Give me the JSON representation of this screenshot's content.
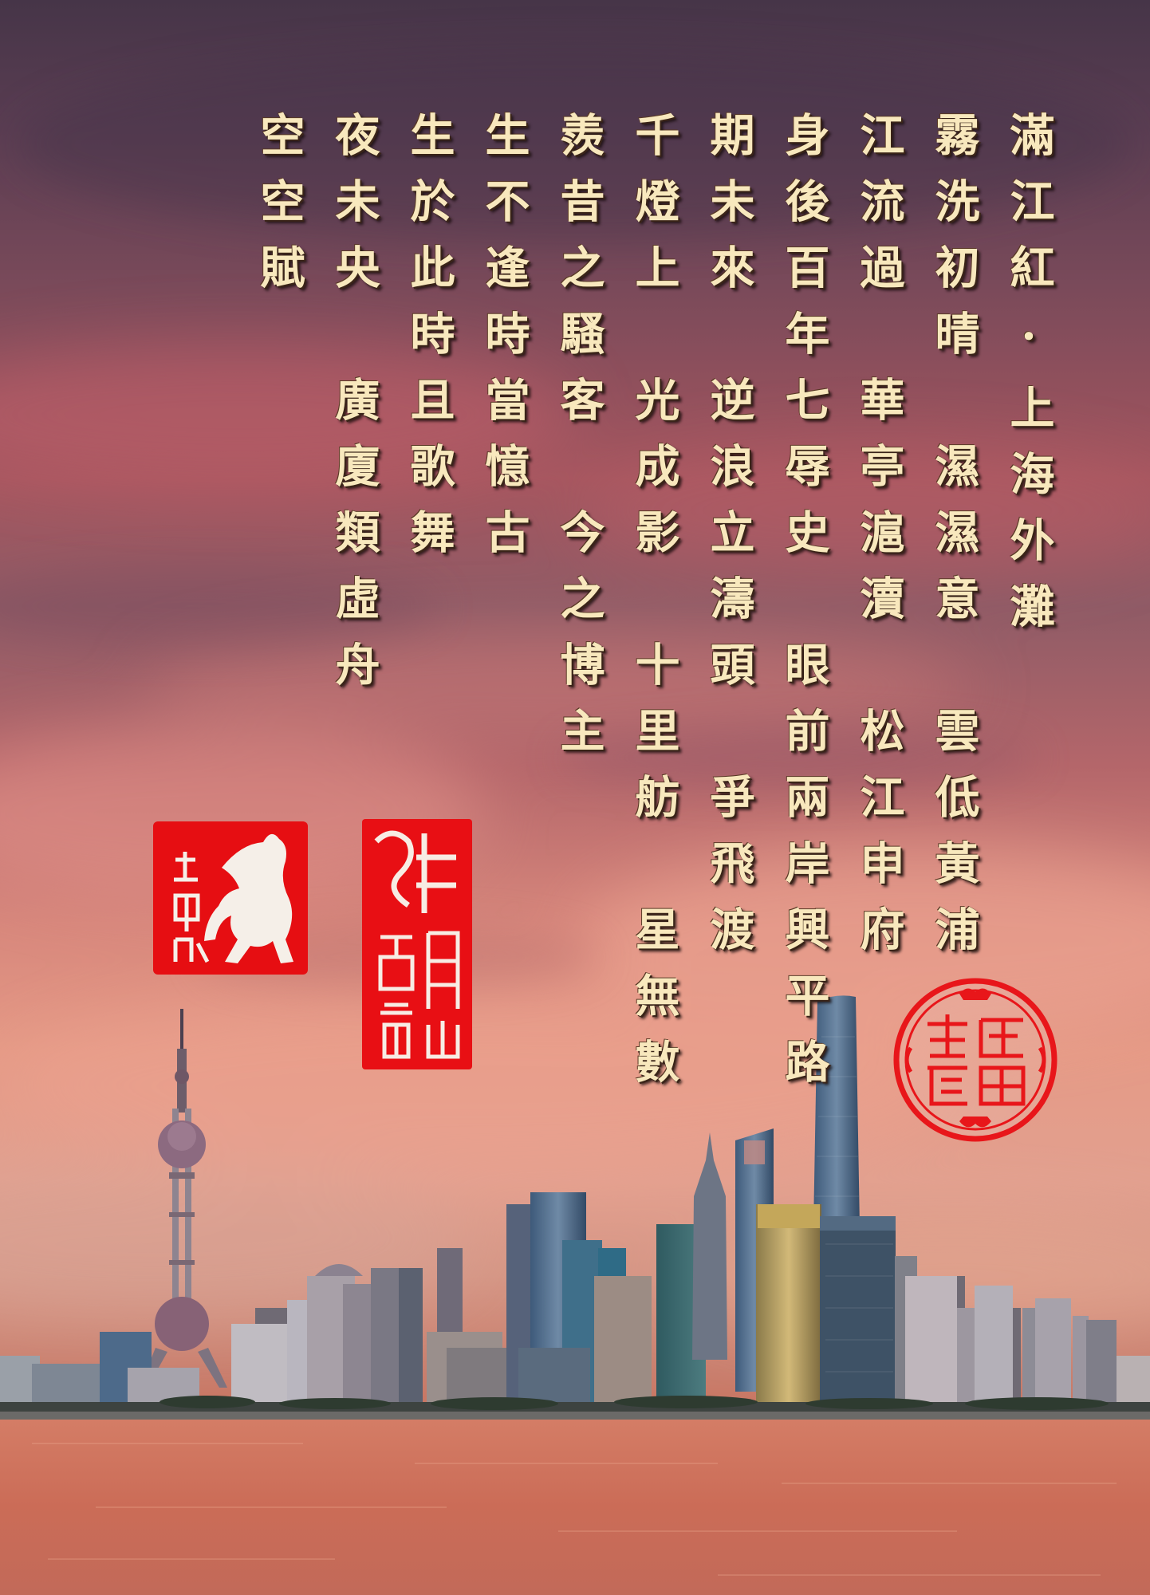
{
  "poem": {
    "columns": [
      "滿江紅·上海外灘",
      "霧洗初晴　濕濕意　雲低黃浦",
      "江流過　華亭滬瀆　松江申府",
      "身後百年七辱史　眼前兩岸興平路",
      "期未來　逆浪立濤頭　爭飛渡",
      "千燈上　光成影　十里舫　星無數",
      "羨昔之騷客　今之博主",
      "生不逢時當憶古",
      "生於此時且歌舞",
      "夜未央　廣廈類虛舟",
      "空空賦"
    ]
  },
  "seals": {
    "horse": {
      "text": "坐子听",
      "color": "#e60e12"
    },
    "collection": {
      "text": "月山堂藏",
      "color": "#e80f14"
    },
    "round": {
      "text": "利吉魚蝦",
      "color": "#e8161a"
    }
  },
  "colors": {
    "calligraphy": "#f8e8bd",
    "water": "#cf6e58"
  }
}
